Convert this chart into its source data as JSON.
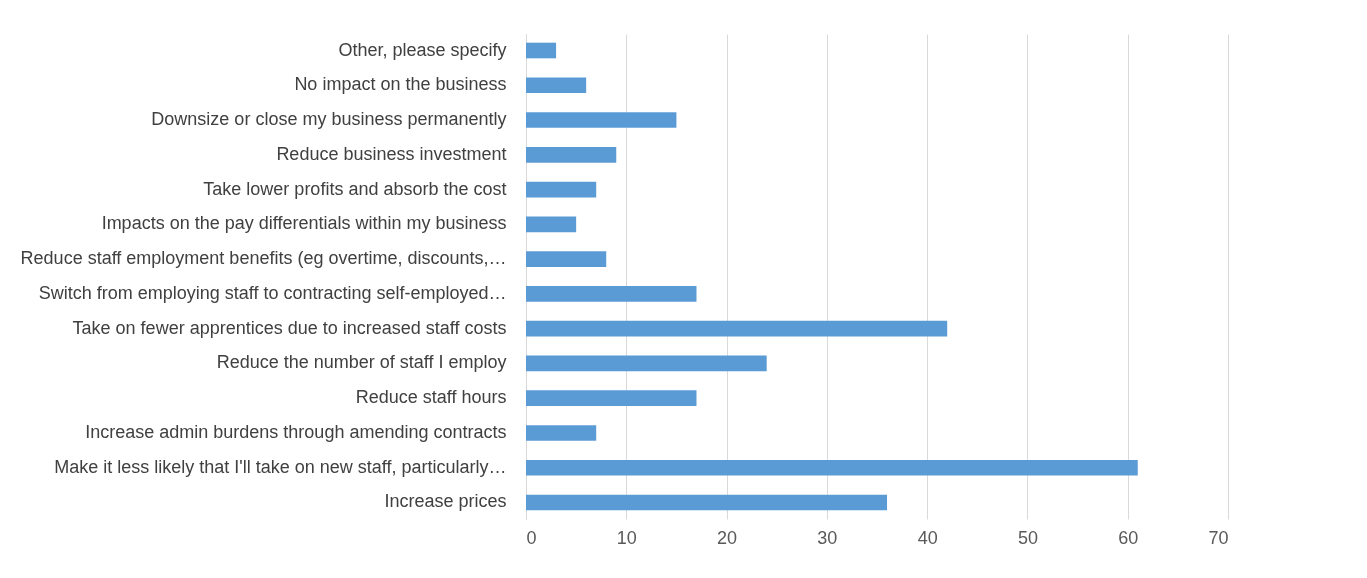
{
  "chart_data": {
    "type": "bar",
    "orientation": "horizontal",
    "categories": [
      "Other, please specify",
      "No impact on the business",
      "Downsize or close my business permanently",
      "Reduce business investment",
      "Take lower profits and absorb the cost",
      "Impacts on the pay differentials within my business",
      "Reduce staff employment benefits (eg overtime, discounts,…",
      "Switch from employing staff to contracting self-employed…",
      "Take on fewer apprentices due to increased staff costs",
      "Reduce the number of staff I employ",
      "Reduce staff hours",
      "Increase admin burdens through amending contracts",
      "Make it less likely that I'll take on new staff, particularly…",
      "Increase prices"
    ],
    "values": [
      3,
      6,
      15,
      9,
      7,
      5,
      8,
      17,
      42,
      24,
      17,
      7,
      61,
      36
    ],
    "color": "#5b9bd5",
    "xlim": [
      0,
      70
    ],
    "xticks": [
      0,
      10,
      20,
      30,
      40,
      50,
      60,
      70
    ],
    "grid": "x"
  }
}
